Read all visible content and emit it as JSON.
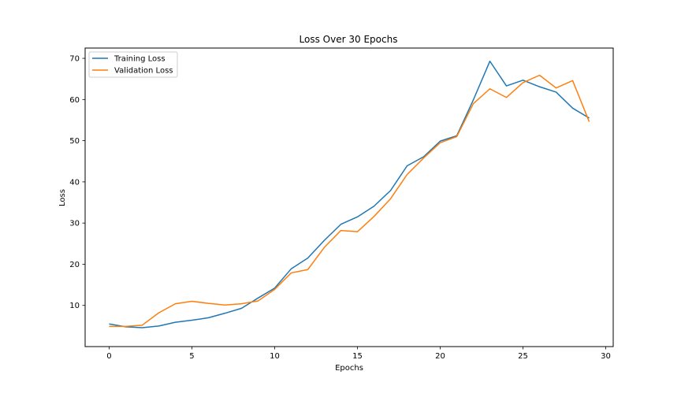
{
  "chart_data": {
    "type": "line",
    "title": "Loss Over 30 Epochs",
    "xlabel": "Epochs",
    "ylabel": "Loss",
    "xlim": [
      -1.45,
      30.45
    ],
    "ylim": [
      0,
      72.5
    ],
    "xticks": [
      0,
      5,
      10,
      15,
      20,
      25,
      30
    ],
    "yticks": [
      10,
      20,
      30,
      40,
      50,
      60,
      70
    ],
    "grid": false,
    "legend_position": "top-left",
    "x": [
      0,
      1,
      2,
      3,
      4,
      5,
      6,
      7,
      8,
      9,
      10,
      11,
      12,
      13,
      14,
      15,
      16,
      17,
      18,
      19,
      20,
      21,
      22,
      23,
      24,
      25,
      26,
      27,
      28,
      29
    ],
    "series": [
      {
        "name": "Training Loss",
        "color": "#1f77b4",
        "values": [
          5.5,
          4.8,
          4.6,
          5.0,
          5.9,
          6.4,
          7.0,
          8.1,
          9.3,
          11.8,
          14.2,
          18.9,
          21.5,
          25.8,
          29.7,
          31.5,
          34.1,
          37.9,
          43.9,
          46.1,
          49.9,
          51.2,
          59.9,
          69.3,
          63.3,
          64.7,
          63.1,
          61.8,
          57.9,
          55.5
        ]
      },
      {
        "name": "Validation Loss",
        "color": "#ff7f0e",
        "values": [
          4.9,
          4.9,
          5.2,
          8.2,
          10.4,
          11.0,
          10.5,
          10.1,
          10.4,
          11.1,
          13.9,
          17.9,
          18.7,
          24.1,
          28.2,
          27.9,
          31.6,
          35.9,
          41.8,
          45.8,
          49.5,
          51.0,
          59.0,
          62.6,
          60.5,
          64.1,
          65.9,
          62.8,
          64.6,
          54.6
        ]
      }
    ]
  }
}
